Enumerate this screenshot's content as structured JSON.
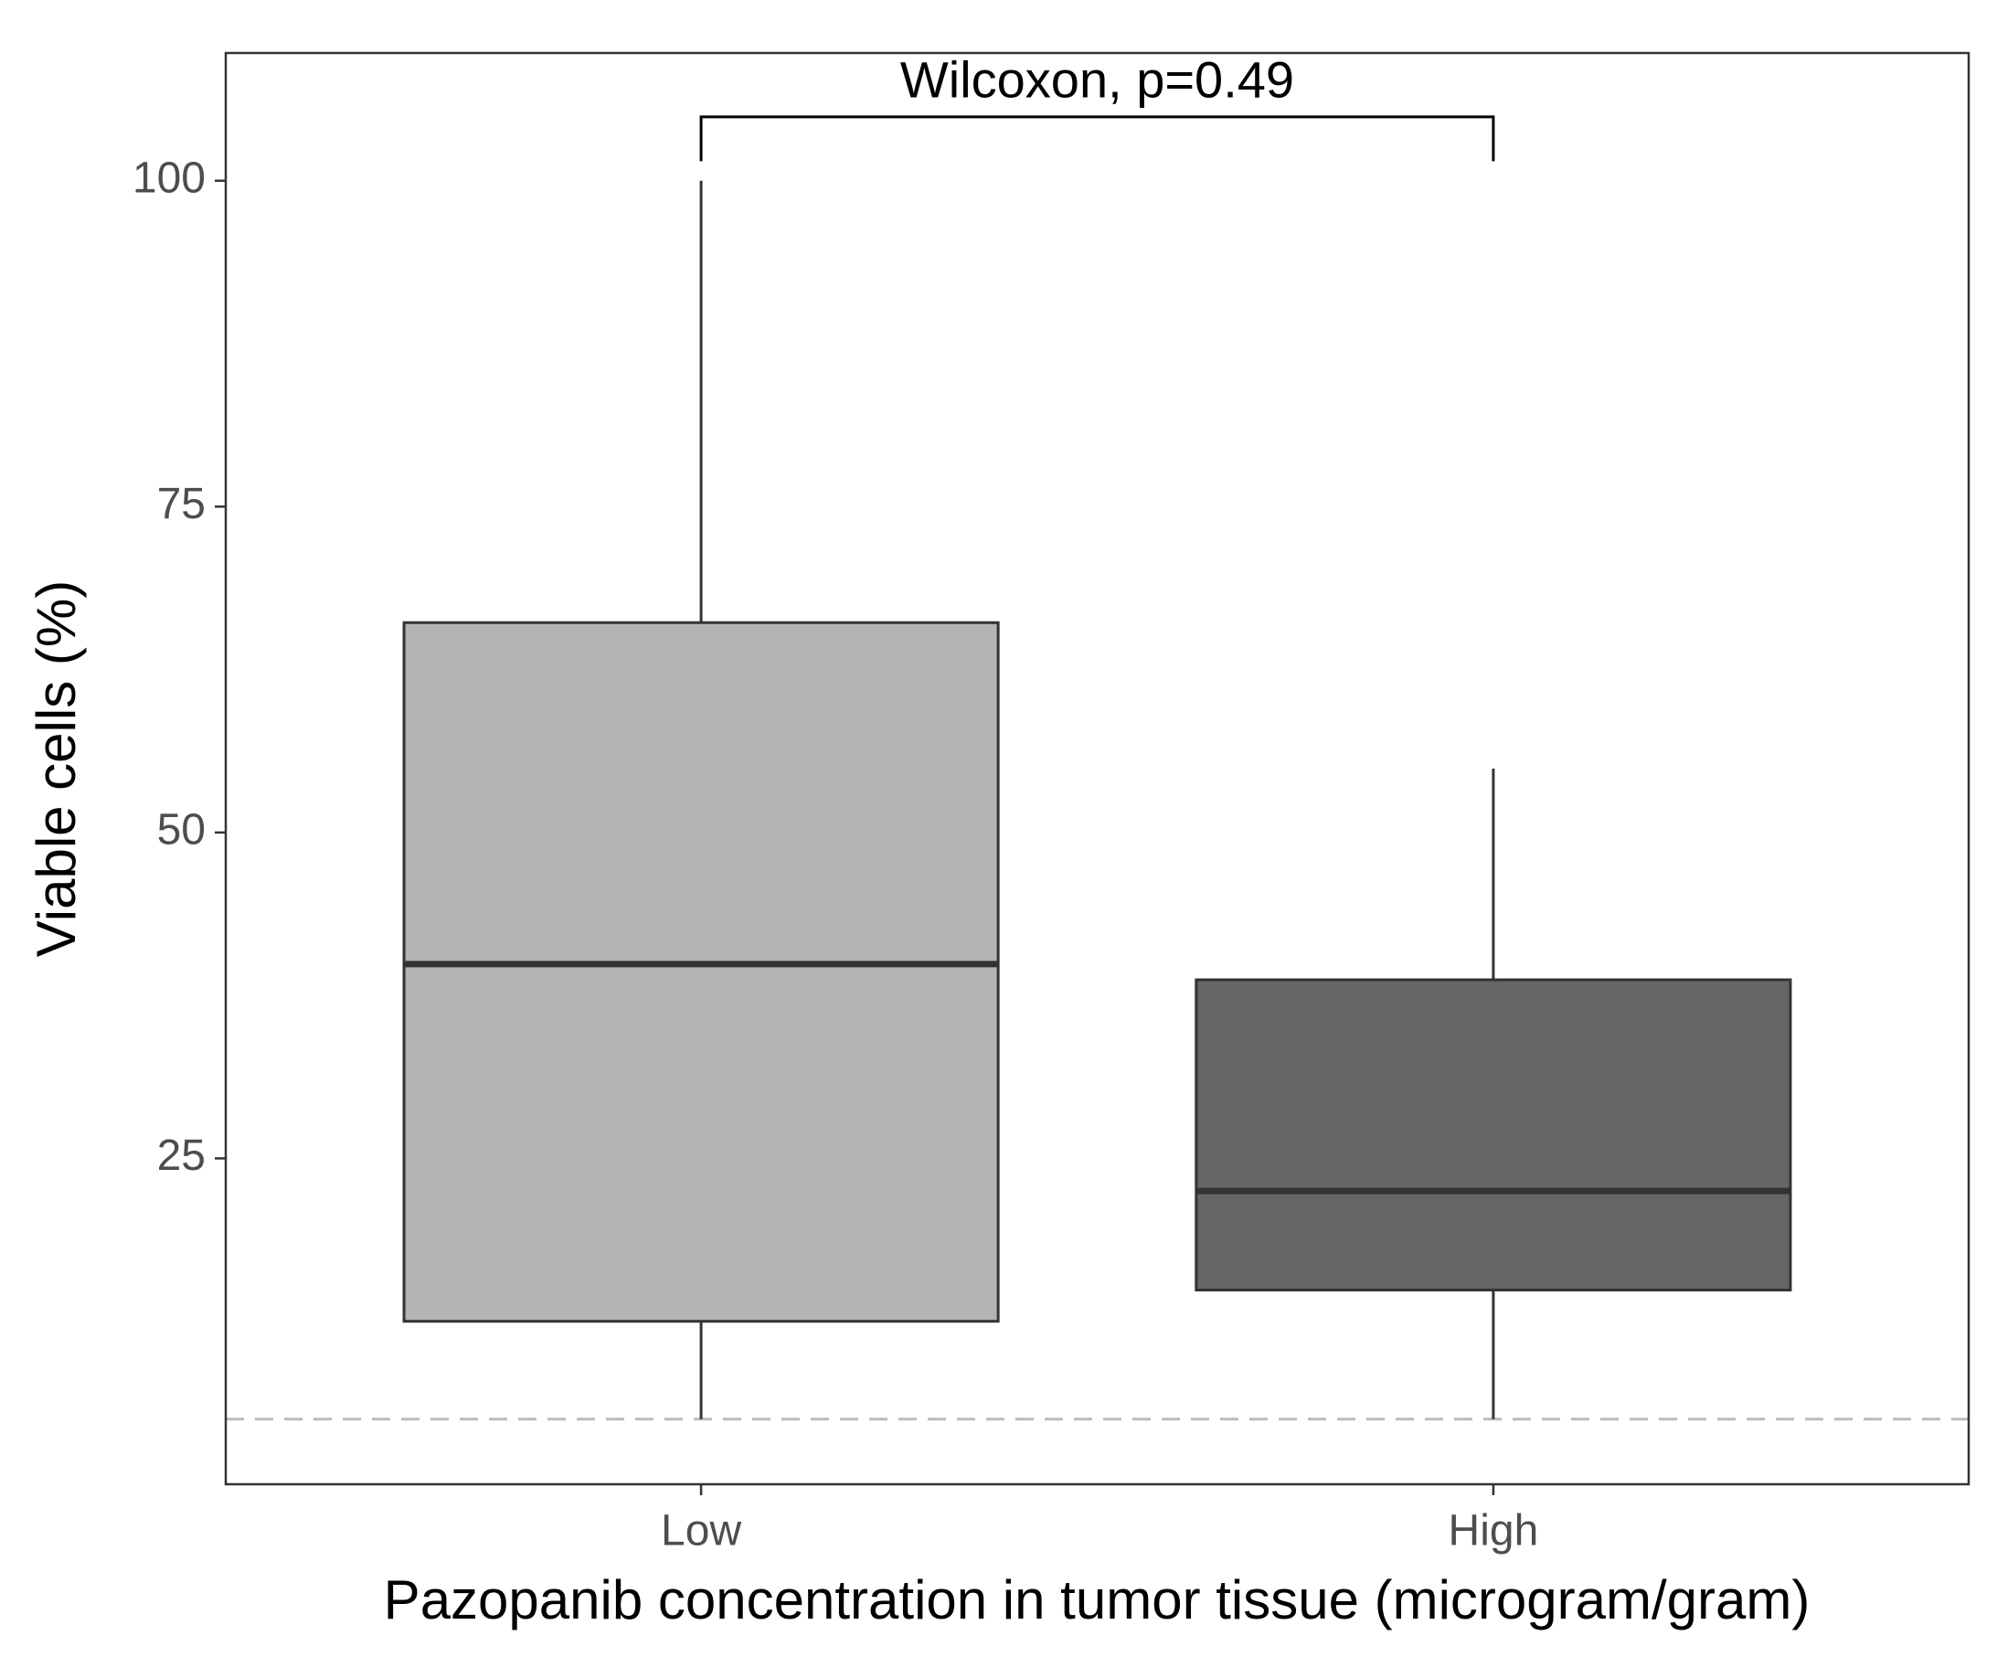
{
  "chart_data": {
    "type": "box",
    "xlabel": "Pazopanib concentration in tumor tissue (microgram/gram)",
    "ylabel": "Viable cells (%)",
    "categories": [
      "Low",
      "High"
    ],
    "whislo": [
      5.0,
      5.0
    ],
    "q1": [
      12.5,
      14.9
    ],
    "median": [
      39.9,
      22.5
    ],
    "q3": [
      66.1,
      38.7
    ],
    "whishi": [
      100,
      54.9
    ],
    "colors": [
      "#b3b3b3",
      "#666666"
    ],
    "ylim": [
      0,
      109.8
    ],
    "yticks": [
      25,
      50,
      75,
      100
    ],
    "hline": 5,
    "bracket": {
      "label": "Wilcoxon, p=0.49",
      "y": 104.9,
      "tip": 101.5
    }
  }
}
